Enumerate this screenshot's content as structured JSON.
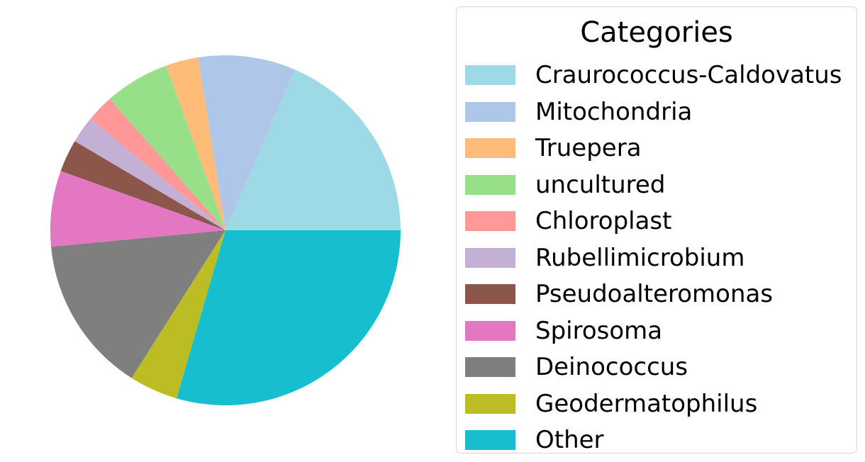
{
  "chart_data": {
    "type": "pie",
    "title": "",
    "legend": {
      "title": "Categories",
      "placement": "right"
    },
    "start_angle_deg": 0,
    "direction": "counterclockwise",
    "slices": [
      {
        "label": "Craurococcus-Caldovatus",
        "value": 18.5,
        "color": "#9edae5"
      },
      {
        "label": "Mitochondria",
        "value": 9.0,
        "color": "#aec7e8"
      },
      {
        "label": "Truepera",
        "value": 3.0,
        "color": "#ffbb78"
      },
      {
        "label": "uncultured",
        "value": 6.0,
        "color": "#98df8a"
      },
      {
        "label": "Chloroplast",
        "value": 2.5,
        "color": "#ff9896"
      },
      {
        "label": "Rubellimicrobium",
        "value": 2.5,
        "color": "#c5b0d5"
      },
      {
        "label": "Pseudoalteromonas",
        "value": 3.0,
        "color": "#8c564b"
      },
      {
        "label": "Spirosoma",
        "value": 7.0,
        "color": "#e377c2"
      },
      {
        "label": "Deinococcus",
        "value": 14.5,
        "color": "#7f7f7f"
      },
      {
        "label": "Geodermatophilus",
        "value": 4.5,
        "color": "#bcbd22"
      },
      {
        "label": "Other",
        "value": 29.5,
        "color": "#17becf"
      }
    ]
  }
}
